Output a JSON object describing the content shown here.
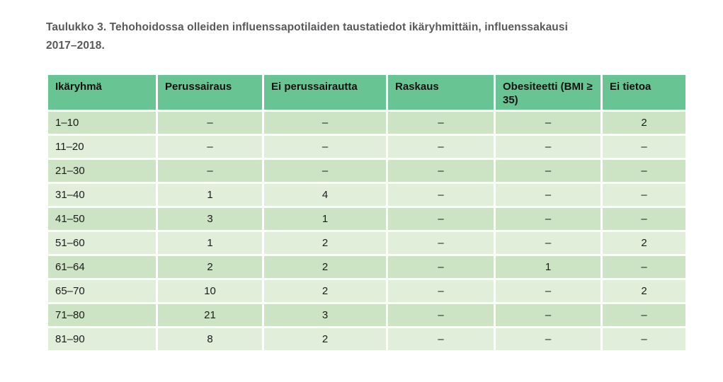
{
  "document": {
    "title_lines": [
      "Taulukko 3. Tehohoidossa olleiden influenssapotilaiden taustatiedot ikäryhmittäin, influenssakausi",
      "2017–2018."
    ],
    "title_full": "Taulukko 3. Tehohoidossa olleiden influenssapotilaiden taustatiedot ikäryhmittäin, influenssakausi 2017–2018."
  },
  "table": {
    "columns": [
      "Ikäryhmä",
      "Perussairaus",
      "Ei perussairautta",
      "Raskaus",
      "Obesiteetti (BMI ≥ 35)",
      "Ei tietoa"
    ],
    "rows": [
      [
        "1–10",
        "–",
        "–",
        "–",
        "–",
        "2"
      ],
      [
        "11–20",
        "–",
        "–",
        "–",
        "–",
        "–"
      ],
      [
        "21–30",
        "–",
        "–",
        "–",
        "–",
        "–"
      ],
      [
        "31–40",
        "1",
        "4",
        "–",
        "–",
        "–"
      ],
      [
        "41–50",
        "3",
        "1",
        "–",
        "–",
        "–"
      ],
      [
        "51–60",
        "1",
        "2",
        "–",
        "–",
        "2"
      ],
      [
        "61–64",
        "2",
        "2",
        "–",
        "1",
        "–"
      ],
      [
        "65–70",
        "10",
        "2",
        "–",
        "–",
        "2"
      ],
      [
        "71–80",
        "21",
        "3",
        "–",
        "–",
        "–"
      ],
      [
        "81–90",
        "8",
        "2",
        "–",
        "–",
        "–"
      ]
    ]
  },
  "colors": {
    "header_bg": "#69c494",
    "row_dark": "#cce3c4",
    "row_light": "#e0eeda",
    "title_color": "#58595b"
  }
}
